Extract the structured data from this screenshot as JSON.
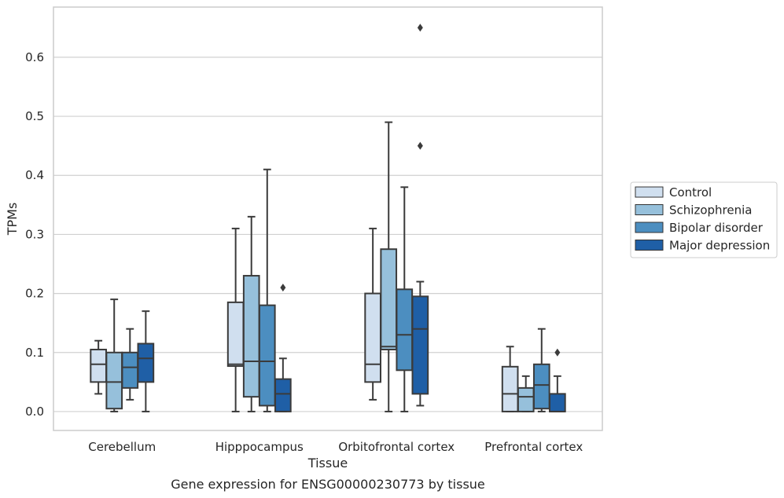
{
  "chart_data": {
    "type": "boxplot",
    "caption": "Gene expression for ENSG00000230773 by tissue",
    "xlabel": "Tissue",
    "ylabel": "TPMs",
    "ylim": [
      -0.032,
      0.685
    ],
    "yticks": [
      0.0,
      0.1,
      0.2,
      0.3,
      0.4,
      0.5,
      0.6
    ],
    "ytick_labels": [
      "0.0",
      "0.1",
      "0.2",
      "0.3",
      "0.4",
      "0.5",
      "0.6"
    ],
    "grid": "horizontal",
    "legend_position": "right",
    "categories": [
      "Cerebellum",
      "Hipppocampus",
      "Orbitofrontal cortex",
      "Prefrontal cortex"
    ],
    "series": [
      {
        "name": "Control",
        "color": "#d0dfef",
        "boxes": [
          {
            "whislo": 0.03,
            "q1": 0.05,
            "med": 0.08,
            "q3": 0.105,
            "whishi": 0.12,
            "fliers": []
          },
          {
            "whislo": 0.0,
            "q1": 0.077,
            "med": 0.08,
            "q3": 0.185,
            "whishi": 0.31,
            "fliers": []
          },
          {
            "whislo": 0.02,
            "q1": 0.05,
            "med": 0.08,
            "q3": 0.2,
            "whishi": 0.31,
            "fliers": []
          },
          {
            "whislo": 0.0,
            "q1": 0.0,
            "med": 0.03,
            "q3": 0.076,
            "whishi": 0.11,
            "fliers": []
          }
        ]
      },
      {
        "name": "Schizophrenia",
        "color": "#96c0db",
        "boxes": [
          {
            "whislo": 0.0,
            "q1": 0.005,
            "med": 0.05,
            "q3": 0.1,
            "whishi": 0.19,
            "fliers": []
          },
          {
            "whislo": 0.0,
            "q1": 0.025,
            "med": 0.085,
            "q3": 0.23,
            "whishi": 0.33,
            "fliers": []
          },
          {
            "whislo": 0.0,
            "q1": 0.105,
            "med": 0.11,
            "q3": 0.275,
            "whishi": 0.49,
            "fliers": []
          },
          {
            "whislo": 0.0,
            "q1": 0.0,
            "med": 0.025,
            "q3": 0.04,
            "whishi": 0.06,
            "fliers": []
          }
        ]
      },
      {
        "name": "Bipolar disorder",
        "color": "#4c8ec0",
        "boxes": [
          {
            "whislo": 0.02,
            "q1": 0.04,
            "med": 0.075,
            "q3": 0.1,
            "whishi": 0.14,
            "fliers": []
          },
          {
            "whislo": 0.0,
            "q1": 0.01,
            "med": 0.085,
            "q3": 0.18,
            "whishi": 0.41,
            "fliers": []
          },
          {
            "whislo": 0.0,
            "q1": 0.07,
            "med": 0.13,
            "q3": 0.207,
            "whishi": 0.38,
            "fliers": []
          },
          {
            "whislo": 0.0,
            "q1": 0.005,
            "med": 0.045,
            "q3": 0.08,
            "whishi": 0.14,
            "fliers": []
          }
        ]
      },
      {
        "name": "Major depression",
        "color": "#1f5fa6",
        "boxes": [
          {
            "whislo": 0.0,
            "q1": 0.05,
            "med": 0.09,
            "q3": 0.115,
            "whishi": 0.17,
            "fliers": []
          },
          {
            "whislo": 0.0,
            "q1": 0.0,
            "med": 0.03,
            "q3": 0.055,
            "whishi": 0.09,
            "fliers": [
              0.21
            ]
          },
          {
            "whislo": 0.01,
            "q1": 0.03,
            "med": 0.14,
            "q3": 0.195,
            "whishi": 0.22,
            "fliers": [
              0.45,
              0.65
            ]
          },
          {
            "whislo": 0.0,
            "q1": 0.0,
            "med": 0.0,
            "q3": 0.03,
            "whishi": 0.06,
            "fliers": [
              0.1
            ]
          }
        ]
      }
    ]
  }
}
